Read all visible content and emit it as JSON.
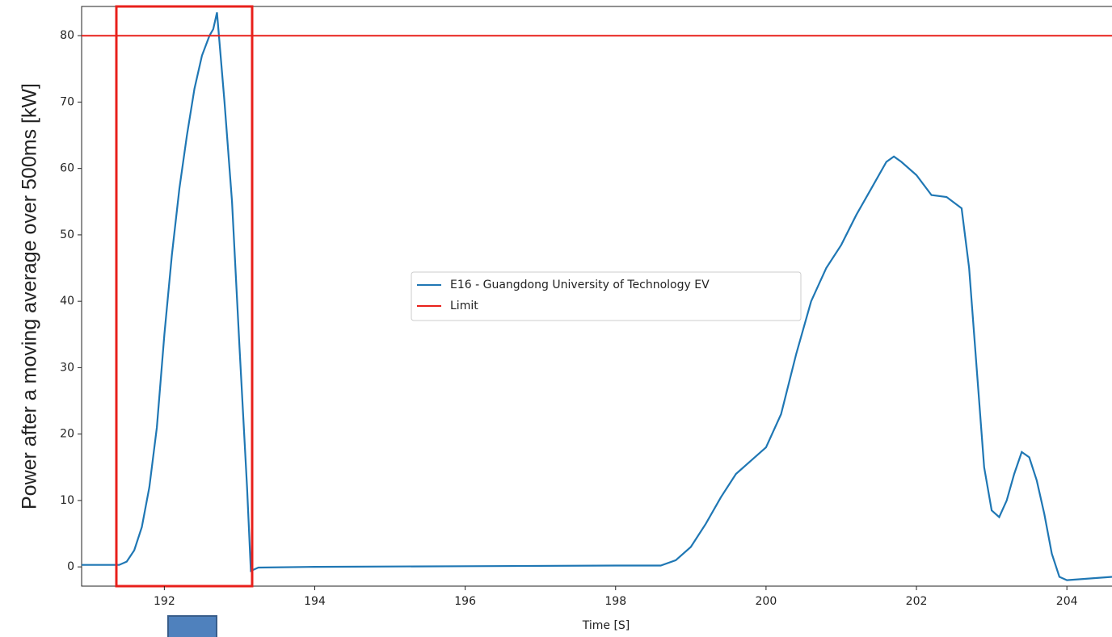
{
  "chart_data": {
    "type": "line",
    "xlabel": "Time [S]",
    "ylabel": "Power after a moving average over 500ms [kW]",
    "xlim": [
      190.9,
      204.6
    ],
    "ylim": [
      -2.9,
      84.4
    ],
    "xticks": [
      192,
      194,
      196,
      198,
      200,
      202,
      204
    ],
    "yticks": [
      0,
      10,
      20,
      30,
      40,
      50,
      60,
      70,
      80
    ],
    "legend": "center",
    "series": [
      {
        "name": "E16 - Guangdong University of Technology EV",
        "color": "#1f77b4",
        "x": [
          190.9,
          191.4,
          191.5,
          191.6,
          191.7,
          191.8,
          191.9,
          192.0,
          192.1,
          192.2,
          192.3,
          192.4,
          192.5,
          192.6,
          192.65,
          192.7,
          192.8,
          192.9,
          193.0,
          193.1,
          193.15,
          193.25,
          194,
          196,
          198,
          198.6,
          198.8,
          199.0,
          199.2,
          199.4,
          199.6,
          199.8,
          200.0,
          200.2,
          200.4,
          200.6,
          200.8,
          201.0,
          201.2,
          201.4,
          201.6,
          201.7,
          201.8,
          202.0,
          202.2,
          202.4,
          202.6,
          202.7,
          202.8,
          202.9,
          203.0,
          203.1,
          203.2,
          203.3,
          203.4,
          203.5,
          203.6,
          203.7,
          203.8,
          203.9,
          204.0,
          204.6
        ],
        "values": [
          0.3,
          0.3,
          0.8,
          2.5,
          6,
          12,
          21,
          35,
          47,
          57,
          65,
          72,
          77,
          80,
          81,
          83.5,
          70,
          55,
          33,
          12,
          -0.6,
          -0.1,
          0,
          0.1,
          0.2,
          0.2,
          1,
          3,
          6.5,
          10.5,
          14,
          16,
          18,
          23,
          32,
          40,
          45,
          48.5,
          53,
          57,
          61,
          61.8,
          61,
          59,
          56,
          55.7,
          54,
          45,
          30,
          15,
          8.5,
          7.5,
          10,
          14,
          17.3,
          16.5,
          13,
          8,
          2,
          -1.5,
          -2,
          -1.5
        ]
      }
    ],
    "hlines": [
      {
        "name": "Limit",
        "color": "#e8201b",
        "value": 80
      }
    ]
  }
}
